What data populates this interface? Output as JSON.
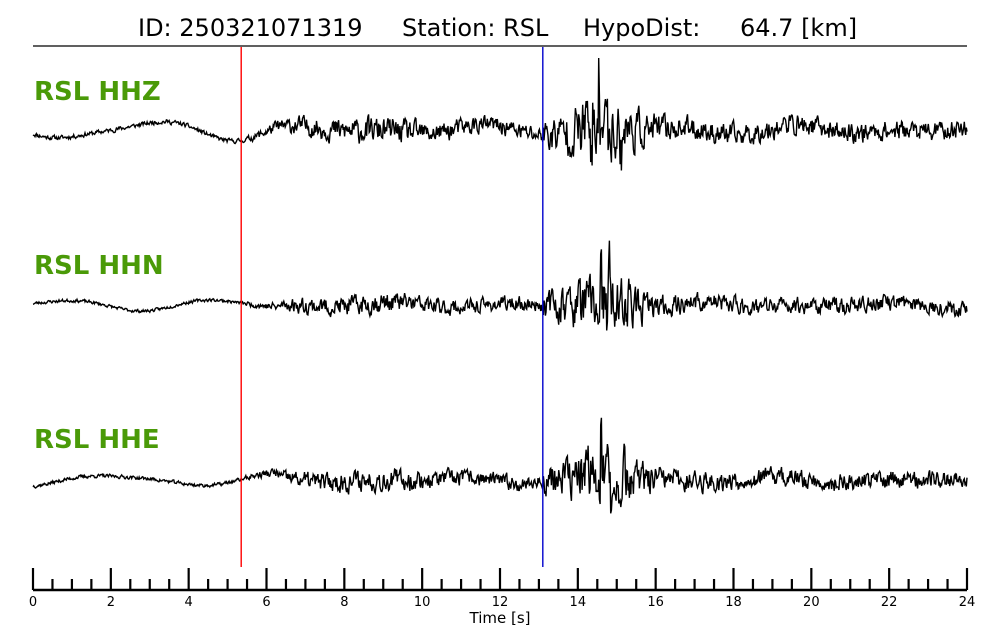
{
  "header": {
    "id_text": "ID: 250321071319",
    "station_text": "Station: RSL",
    "hypodist_text": "HypoDist:",
    "hypodist_value": "64.7 [km]"
  },
  "colors": {
    "label_green": "#4a9a08",
    "p_pick": "#ff0000",
    "s_pick": "#0000cc",
    "trace": "#000000"
  },
  "chart_data": {
    "type": "line",
    "xlabel": "Time [s]",
    "xlim": [
      0,
      24
    ],
    "x_ticks": [
      0,
      2,
      4,
      6,
      8,
      10,
      12,
      14,
      16,
      18,
      20,
      22,
      24
    ],
    "x_minor_step": 0.5,
    "picks": [
      {
        "phase": "P",
        "time": 5.35,
        "color": "#ff0000"
      },
      {
        "phase": "S",
        "time": 13.1,
        "color": "#0000cc"
      }
    ],
    "series": [
      {
        "name": "RSL HHZ",
        "noise": 0.25,
        "signal": 0.9,
        "coda": 0.55,
        "wander": 1.0,
        "seed": 11,
        "peaks": [
          {
            "t": 14.55,
            "a": 5.6
          },
          {
            "t": 14.35,
            "a": -4.4
          },
          {
            "t": 14.75,
            "a": 4.2
          },
          {
            "t": 14.2,
            "a": 3.5
          },
          {
            "t": 15.1,
            "a": -3.0
          }
        ]
      },
      {
        "name": "RSL HHN",
        "noise": 0.18,
        "signal": 0.75,
        "coda": 0.5,
        "wander": 0.55,
        "seed": 23,
        "peaks": [
          {
            "t": 14.8,
            "a": 5.2
          },
          {
            "t": 14.75,
            "a": -3.6
          },
          {
            "t": 14.6,
            "a": 3.3
          },
          {
            "t": 15.3,
            "a": 2.6
          }
        ]
      },
      {
        "name": "RSL HHE",
        "noise": 0.2,
        "signal": 0.8,
        "coda": 0.55,
        "wander": 0.6,
        "seed": 37,
        "peaks": [
          {
            "t": 14.6,
            "a": 5.3
          },
          {
            "t": 14.85,
            "a": -3.8
          },
          {
            "t": 14.4,
            "a": 3.2
          },
          {
            "t": 15.2,
            "a": 2.8
          }
        ]
      }
    ]
  }
}
